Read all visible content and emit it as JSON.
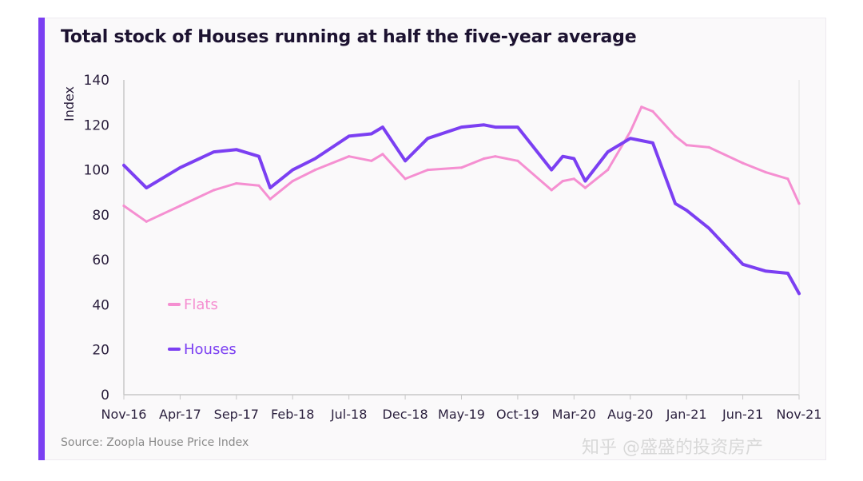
{
  "title": "Total stock of Houses running at half the five-year average",
  "source": "Source: Zoopla House Price Index",
  "watermark": "知乎 @盛盛的投资房产",
  "colors": {
    "accent": "#7b3ff2",
    "flats": "#f58fd1",
    "houses": "#7b3ff2",
    "axis": "#c8c8c8",
    "text": "#2a1f3d"
  },
  "chart_data": {
    "type": "line",
    "title": "Total stock of Houses running at half the five-year average",
    "xlabel": "",
    "ylabel": "Index",
    "ylim": [
      0,
      140
    ],
    "yticks": [
      0,
      20,
      40,
      60,
      80,
      100,
      120,
      140
    ],
    "xticks": [
      "Nov-16",
      "Apr-17",
      "Sep-17",
      "Feb-18",
      "Jul-18",
      "Dec-18",
      "May-19",
      "Oct-19",
      "Mar-20",
      "Aug-20",
      "Jan-21",
      "Jun-21",
      "Nov-21"
    ],
    "grid": false,
    "legend": "left",
    "x": [
      "Nov-16",
      "Jan-17",
      "Apr-17",
      "Jul-17",
      "Sep-17",
      "Nov-17",
      "Dec-17",
      "Feb-18",
      "Apr-18",
      "Jul-18",
      "Sep-18",
      "Oct-18",
      "Dec-18",
      "Feb-19",
      "May-19",
      "Jul-19",
      "Aug-19",
      "Oct-19",
      "Jan-20",
      "Feb-20",
      "Mar-20",
      "Apr-20",
      "Jun-20",
      "Aug-20",
      "Sep-20",
      "Oct-20",
      "Dec-20",
      "Jan-21",
      "Mar-21",
      "Jun-21",
      "Aug-21",
      "Oct-21",
      "Nov-21"
    ],
    "series": [
      {
        "name": "Flats",
        "values": [
          84,
          77,
          84,
          91,
          94,
          93,
          87,
          95,
          100,
          106,
          104,
          107,
          96,
          100,
          101,
          105,
          106,
          104,
          91,
          95,
          96,
          92,
          100,
          117,
          128,
          126,
          115,
          111,
          110,
          103,
          99,
          96,
          85
        ]
      },
      {
        "name": "Houses",
        "values": [
          102,
          92,
          101,
          108,
          109,
          106,
          92,
          100,
          105,
          115,
          116,
          119,
          104,
          114,
          119,
          120,
          119,
          119,
          100,
          106,
          105,
          95,
          108,
          114,
          113,
          112,
          85,
          82,
          74,
          58,
          55,
          54,
          45
        ]
      }
    ]
  }
}
